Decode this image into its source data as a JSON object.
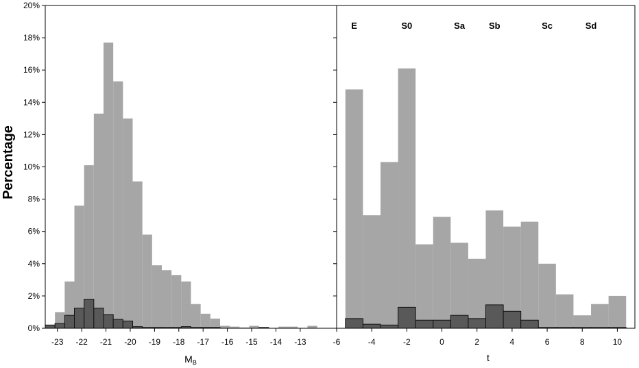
{
  "y_axis_label": "Percentage",
  "chart_data": [
    {
      "type": "bar",
      "xlabel": "M_B",
      "xlabel_main": "M",
      "xlabel_sub": "B",
      "ylim": [
        0,
        20
      ],
      "yticks": [
        "0%",
        "2%",
        "4%",
        "6%",
        "8%",
        "10%",
        "12%",
        "14%",
        "16%",
        "18%",
        "20%"
      ],
      "xlim": [
        -23.5,
        -11.5
      ],
      "xtick_labels": [
        "-23",
        "-22",
        "-21",
        "-20",
        "-19",
        "-18",
        "-17",
        "-16",
        "-15",
        "-14",
        "-13"
      ],
      "bin_edges": [
        -23.5,
        -23.1,
        -22.7,
        -22.3,
        -21.9,
        -21.5,
        -21.1,
        -20.7,
        -20.3,
        -19.9,
        -19.5,
        -19.1,
        -18.7,
        -18.3,
        -17.9,
        -17.5,
        -17.1,
        -16.7,
        -16.3,
        -15.9,
        -15.5,
        -15.1,
        -14.7,
        -14.3,
        -13.9,
        -13.5,
        -13.1,
        -12.7,
        -12.3,
        -11.9,
        -11.5
      ],
      "series": [
        {
          "color": "#a6a6a6",
          "values": [
            0.0,
            1.0,
            2.9,
            7.6,
            10.1,
            13.3,
            17.7,
            15.3,
            13.0,
            9.1,
            5.8,
            3.9,
            3.6,
            3.3,
            2.9,
            1.5,
            0.9,
            0.6,
            0.15,
            0.1,
            0.05,
            0.15,
            0.05,
            0.0,
            0.1,
            0.1,
            0.0,
            0.15,
            0.0,
            0.0
          ]
        },
        {
          "color": "#595959",
          "values": [
            0.2,
            0.3,
            0.8,
            1.25,
            1.8,
            1.25,
            0.85,
            0.55,
            0.45,
            0.1,
            0.05,
            0.05,
            0.05,
            0.05,
            0.1,
            0.05,
            0.05,
            0.05,
            0.0,
            0.0,
            0.0,
            0.0,
            0.05,
            0.0,
            0.0,
            0.0,
            0.0,
            0.0,
            0.0,
            0.0
          ]
        }
      ]
    },
    {
      "type": "bar",
      "xlabel": "t",
      "ylim": [
        0,
        20
      ],
      "xlim": [
        -6,
        11
      ],
      "xtick_labels": [
        "-6",
        "-4",
        "-2",
        "0",
        "2",
        "4",
        "6",
        "8",
        "10"
      ],
      "bin_edges": [
        -5.5,
        -4.5,
        -3.5,
        -2.5,
        -1.5,
        -0.5,
        0.5,
        1.5,
        2.5,
        3.5,
        4.5,
        5.5,
        6.5,
        7.5,
        8.5,
        9.5,
        10.5
      ],
      "morphology_labels": [
        {
          "text": "E",
          "t": -5.0
        },
        {
          "text": "S0",
          "t": -2.0
        },
        {
          "text": "Sa",
          "t": 1.0
        },
        {
          "text": "Sb",
          "t": 3.0
        },
        {
          "text": "Sc",
          "t": 6.0
        },
        {
          "text": "Sd",
          "t": 8.5
        }
      ],
      "series": [
        {
          "color": "#a6a6a6",
          "values": [
            14.8,
            7.0,
            10.3,
            16.1,
            5.2,
            6.9,
            5.3,
            4.3,
            7.3,
            6.3,
            6.6,
            4.0,
            2.1,
            0.8,
            1.5,
            2.0
          ]
        },
        {
          "color": "#595959",
          "values": [
            0.6,
            0.25,
            0.2,
            1.3,
            0.5,
            0.5,
            0.8,
            0.6,
            1.45,
            1.05,
            0.5,
            0.05,
            0.05,
            0.05,
            0.05,
            0.05
          ]
        }
      ]
    }
  ]
}
